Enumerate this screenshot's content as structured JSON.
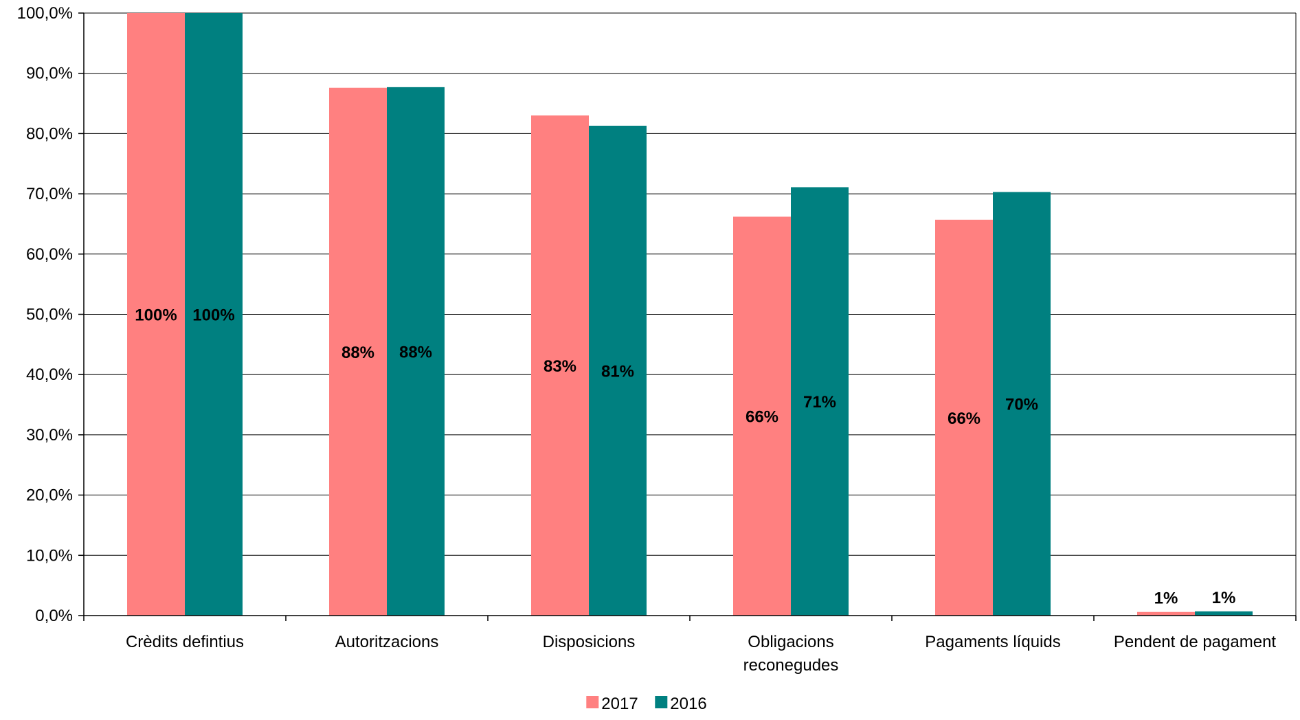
{
  "chart_data": {
    "type": "bar",
    "title": "",
    "xlabel": "",
    "ylabel": "",
    "ylim": [
      0,
      100
    ],
    "yticks": [
      "0,0%",
      "10,0%",
      "20,0%",
      "30,0%",
      "40,0%",
      "50,0%",
      "60,0%",
      "70,0%",
      "80,0%",
      "90,0%",
      "100,0%"
    ],
    "grid": true,
    "legend_position": "bottom",
    "categories": [
      [
        "Crèdits defintius"
      ],
      [
        "Autoritzacions"
      ],
      [
        "Disposicions"
      ],
      [
        "Obligacions",
        "reconegudes"
      ],
      [
        "Pagaments líquids"
      ],
      [
        "Pendent de pagament"
      ]
    ],
    "series": [
      {
        "name": "2017",
        "color": "#ff8080",
        "values": [
          100,
          87.6,
          83.0,
          66.2,
          65.7,
          0.6
        ],
        "labels": [
          "100%",
          "88%",
          "83%",
          "66%",
          "66%",
          "1%"
        ]
      },
      {
        "name": "2016",
        "color": "#008080",
        "values": [
          100,
          87.7,
          81.3,
          71.1,
          70.3,
          0.7
        ],
        "labels": [
          "100%",
          "88%",
          "81%",
          "71%",
          "70%",
          "1%"
        ]
      }
    ]
  }
}
